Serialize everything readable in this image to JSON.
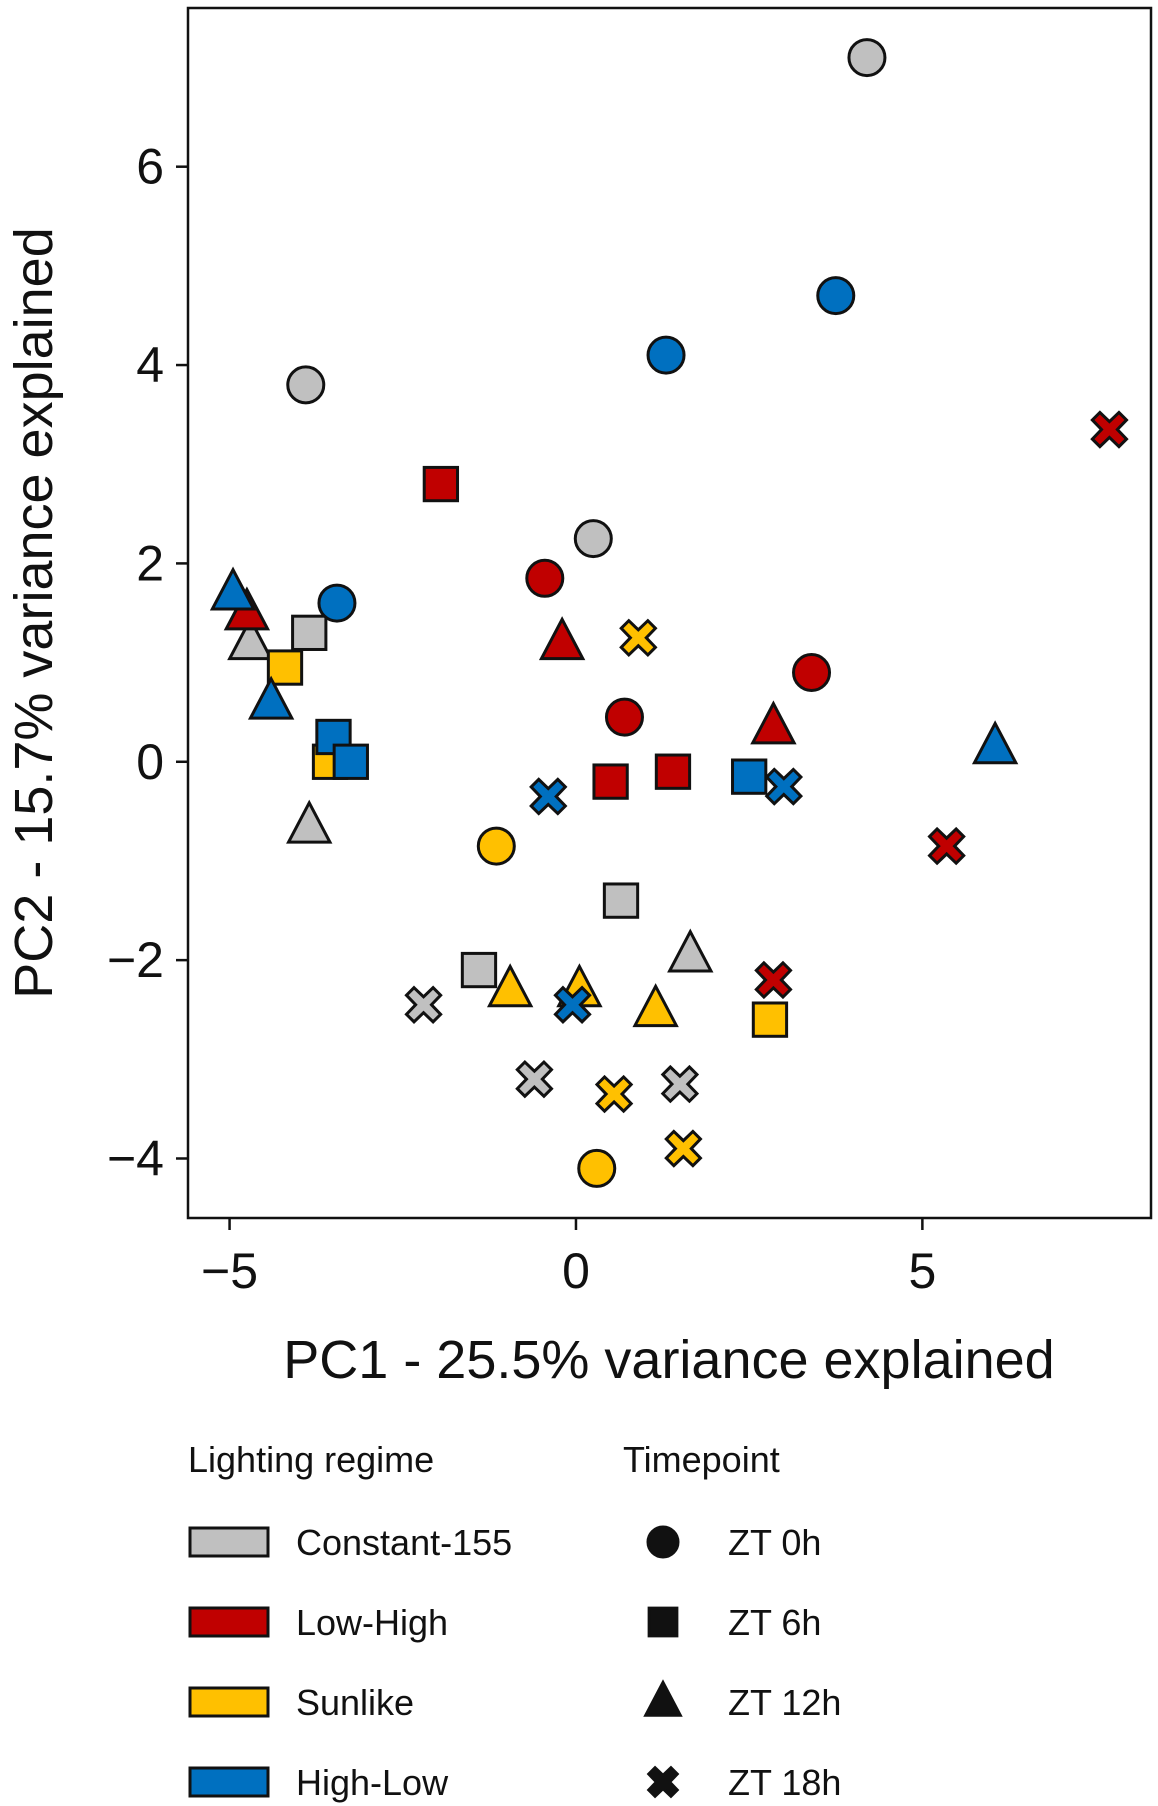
{
  "chart_data": {
    "type": "scatter",
    "xlabel": "PC1 - 25.5% variance explained",
    "ylabel": "PC2 - 15.7% variance explained",
    "xlim": [
      -5.6,
      8.3
    ],
    "ylim": [
      -4.6,
      7.6
    ],
    "xticks": [
      -5,
      0,
      5
    ],
    "yticks": [
      -4,
      -2,
      0,
      2,
      4,
      6
    ],
    "grid": false,
    "legend": {
      "placement": "below",
      "color_title": "Lighting regime",
      "shape_title": "Timepoint"
    },
    "groups": [
      {
        "name": "Constant-155",
        "color": "#c0c0c0"
      },
      {
        "name": "Low-High",
        "color": "#c00000"
      },
      {
        "name": "Sunlike",
        "color": "#ffc000"
      },
      {
        "name": "High-Low",
        "color": "#0070c0"
      }
    ],
    "timepoints": [
      {
        "name": "ZT 0h",
        "marker": "circle"
      },
      {
        "name": "ZT 6h",
        "marker": "square"
      },
      {
        "name": "ZT 12h",
        "marker": "triangle"
      },
      {
        "name": "ZT 18h",
        "marker": "x"
      }
    ],
    "points": [
      {
        "x": 4.2,
        "y": 7.1,
        "group": "Constant-155",
        "time": "ZT 0h"
      },
      {
        "x": -3.9,
        "y": 3.8,
        "group": "Constant-155",
        "time": "ZT 0h"
      },
      {
        "x": 0.25,
        "y": 2.25,
        "group": "Constant-155",
        "time": "ZT 0h"
      },
      {
        "x": -3.85,
        "y": 1.3,
        "group": "Constant-155",
        "time": "ZT 6h"
      },
      {
        "x": 0.65,
        "y": -1.4,
        "group": "Constant-155",
        "time": "ZT 6h"
      },
      {
        "x": -1.4,
        "y": -2.1,
        "group": "Constant-155",
        "time": "ZT 6h"
      },
      {
        "x": -4.7,
        "y": 1.2,
        "group": "Constant-155",
        "time": "ZT 12h"
      },
      {
        "x": -3.85,
        "y": -0.65,
        "group": "Constant-155",
        "time": "ZT 12h"
      },
      {
        "x": 1.65,
        "y": -1.95,
        "group": "Constant-155",
        "time": "ZT 12h"
      },
      {
        "x": -2.2,
        "y": -2.45,
        "group": "Constant-155",
        "time": "ZT 18h"
      },
      {
        "x": -0.6,
        "y": -3.2,
        "group": "Constant-155",
        "time": "ZT 18h"
      },
      {
        "x": 1.5,
        "y": -3.25,
        "group": "Constant-155",
        "time": "ZT 18h"
      },
      {
        "x": -0.45,
        "y": 1.85,
        "group": "Low-High",
        "time": "ZT 0h"
      },
      {
        "x": 0.7,
        "y": 0.45,
        "group": "Low-High",
        "time": "ZT 0h"
      },
      {
        "x": 3.4,
        "y": 0.9,
        "group": "Low-High",
        "time": "ZT 0h"
      },
      {
        "x": -1.95,
        "y": 2.8,
        "group": "Low-High",
        "time": "ZT 6h"
      },
      {
        "x": 0.5,
        "y": -0.2,
        "group": "Low-High",
        "time": "ZT 6h"
      },
      {
        "x": 1.4,
        "y": -0.1,
        "group": "Low-High",
        "time": "ZT 6h"
      },
      {
        "x": -4.75,
        "y": 1.5,
        "group": "Low-High",
        "time": "ZT 12h"
      },
      {
        "x": -0.2,
        "y": 1.2,
        "group": "Low-High",
        "time": "ZT 12h"
      },
      {
        "x": 2.85,
        "y": 0.35,
        "group": "Low-High",
        "time": "ZT 12h"
      },
      {
        "x": 7.7,
        "y": 3.35,
        "group": "Low-High",
        "time": "ZT 18h"
      },
      {
        "x": 5.35,
        "y": -0.85,
        "group": "Low-High",
        "time": "ZT 18h"
      },
      {
        "x": 2.85,
        "y": -2.2,
        "group": "Low-High",
        "time": "ZT 18h"
      },
      {
        "x": -1.15,
        "y": -0.85,
        "group": "Sunlike",
        "time": "ZT 0h"
      },
      {
        "x": 0.3,
        "y": -4.1,
        "group": "Sunlike",
        "time": "ZT 0h"
      },
      {
        "x": -4.2,
        "y": 0.95,
        "group": "Sunlike",
        "time": "ZT 6h"
      },
      {
        "x": -3.55,
        "y": 0.0,
        "group": "Sunlike",
        "time": "ZT 6h"
      },
      {
        "x": 2.8,
        "y": -2.6,
        "group": "Sunlike",
        "time": "ZT 6h"
      },
      {
        "x": -0.95,
        "y": -2.3,
        "group": "Sunlike",
        "time": "ZT 12h"
      },
      {
        "x": 0.05,
        "y": -2.3,
        "group": "Sunlike",
        "time": "ZT 12h"
      },
      {
        "x": 1.15,
        "y": -2.5,
        "group": "Sunlike",
        "time": "ZT 12h"
      },
      {
        "x": 0.9,
        "y": 1.25,
        "group": "Sunlike",
        "time": "ZT 18h"
      },
      {
        "x": 0.55,
        "y": -3.35,
        "group": "Sunlike",
        "time": "ZT 18h"
      },
      {
        "x": 1.55,
        "y": -3.9,
        "group": "Sunlike",
        "time": "ZT 18h"
      },
      {
        "x": 1.3,
        "y": 4.1,
        "group": "High-Low",
        "time": "ZT 0h"
      },
      {
        "x": 3.75,
        "y": 4.7,
        "group": "High-Low",
        "time": "ZT 0h"
      },
      {
        "x": -3.45,
        "y": 1.6,
        "group": "High-Low",
        "time": "ZT 0h"
      },
      {
        "x": -3.5,
        "y": 0.25,
        "group": "High-Low",
        "time": "ZT 6h"
      },
      {
        "x": -3.25,
        "y": 0.0,
        "group": "High-Low",
        "time": "ZT 6h"
      },
      {
        "x": 2.5,
        "y": -0.15,
        "group": "High-Low",
        "time": "ZT 6h"
      },
      {
        "x": -4.95,
        "y": 1.7,
        "group": "High-Low",
        "time": "ZT 12h"
      },
      {
        "x": -4.4,
        "y": 0.6,
        "group": "High-Low",
        "time": "ZT 12h"
      },
      {
        "x": 6.05,
        "y": 0.15,
        "group": "High-Low",
        "time": "ZT 12h"
      },
      {
        "x": -0.4,
        "y": -0.35,
        "group": "High-Low",
        "time": "ZT 18h"
      },
      {
        "x": 3.0,
        "y": -0.25,
        "group": "High-Low",
        "time": "ZT 18h"
      },
      {
        "x": -0.05,
        "y": -2.45,
        "group": "High-Low",
        "time": "ZT 18h"
      }
    ]
  }
}
